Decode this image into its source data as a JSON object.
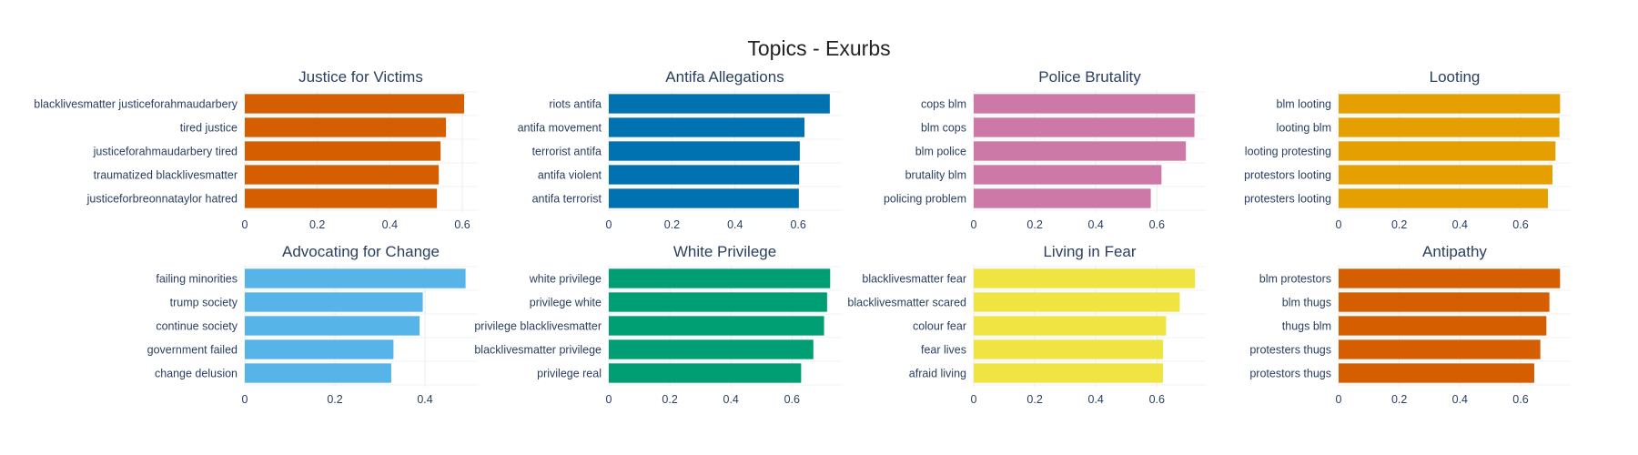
{
  "title": "Topics - Exurbs",
  "chart_data": [
    {
      "type": "bar",
      "orientation": "horizontal",
      "title": "Justice for Victims",
      "color": "#d55e00",
      "categories": [
        "blacklivesmatter justiceforahmaudarbery",
        "tired justice",
        "justiceforahmaudarbery tired",
        "traumatized blacklivesmatter",
        "justiceforbreonnataylor hatred"
      ],
      "values": [
        0.605,
        0.555,
        0.54,
        0.535,
        0.53
      ],
      "xlim": [
        0,
        0.64
      ],
      "ticks": [
        0,
        0.2,
        0.4,
        0.6
      ],
      "tick_labels": [
        "0",
        "0.2",
        "0.4",
        "0.6"
      ]
    },
    {
      "type": "bar",
      "orientation": "horizontal",
      "title": "Antifa Allegations",
      "color": "#0072b2",
      "categories": [
        "riots antifa",
        "antifa movement",
        "terrorist antifa",
        "antifa violent",
        "antifa terrorist"
      ],
      "values": [
        0.7,
        0.62,
        0.605,
        0.603,
        0.602
      ],
      "xlim": [
        0,
        0.735
      ],
      "ticks": [
        0,
        0.2,
        0.4,
        0.6
      ],
      "tick_labels": [
        "0",
        "0.2",
        "0.4",
        "0.6"
      ]
    },
    {
      "type": "bar",
      "orientation": "horizontal",
      "title": "Police Brutality",
      "color": "#cc79a7",
      "categories": [
        "cops blm",
        "blm cops",
        "blm police",
        "brutality blm",
        "policing problem"
      ],
      "values": [
        0.725,
        0.723,
        0.695,
        0.615,
        0.58
      ],
      "xlim": [
        0,
        0.76
      ],
      "ticks": [
        0,
        0.2,
        0.4,
        0.6
      ],
      "tick_labels": [
        "0",
        "0.2",
        "0.4",
        "0.6"
      ]
    },
    {
      "type": "bar",
      "orientation": "horizontal",
      "title": "Looting",
      "color": "#e69f00",
      "categories": [
        "blm looting",
        "looting blm",
        "looting protesting",
        "protestors looting",
        "protesters looting"
      ],
      "values": [
        0.73,
        0.728,
        0.715,
        0.705,
        0.69
      ],
      "xlim": [
        0,
        0.765
      ],
      "ticks": [
        0,
        0.2,
        0.4,
        0.6
      ],
      "tick_labels": [
        "0",
        "0.2",
        "0.4",
        "0.6"
      ]
    },
    {
      "type": "bar",
      "orientation": "horizontal",
      "title": "Advocating for Change",
      "color": "#56b4e9",
      "categories": [
        "failing minorities",
        "trump society",
        "continue society",
        "government failed",
        "change delusion"
      ],
      "values": [
        0.49,
        0.395,
        0.388,
        0.33,
        0.325
      ],
      "xlim": [
        0,
        0.515
      ],
      "ticks": [
        0,
        0.2,
        0.4
      ],
      "tick_labels": [
        "0",
        "0.2",
        "0.4"
      ]
    },
    {
      "type": "bar",
      "orientation": "horizontal",
      "title": "White Privilege",
      "color": "#009e73",
      "categories": [
        "white privilege",
        "privilege white",
        "privilege blacklivesmatter",
        "blacklivesmatter privilege",
        "privilege real"
      ],
      "values": [
        0.725,
        0.715,
        0.705,
        0.67,
        0.63
      ],
      "xlim": [
        0,
        0.76
      ],
      "ticks": [
        0,
        0.2,
        0.4,
        0.6
      ],
      "tick_labels": [
        "0",
        "0.2",
        "0.4",
        "0.6"
      ]
    },
    {
      "type": "bar",
      "orientation": "horizontal",
      "title": "Living in Fear",
      "color": "#f0e442",
      "categories": [
        "blacklivesmatter fear",
        "blacklivesmatter scared",
        "colour fear",
        "fear lives",
        "afraid living"
      ],
      "values": [
        0.725,
        0.675,
        0.63,
        0.62,
        0.62
      ],
      "xlim": [
        0,
        0.76
      ],
      "ticks": [
        0,
        0.2,
        0.4,
        0.6
      ],
      "tick_labels": [
        "0",
        "0.2",
        "0.4",
        "0.6"
      ]
    },
    {
      "type": "bar",
      "orientation": "horizontal",
      "title": "Antipathy",
      "color": "#d55e00",
      "categories": [
        "blm protestors",
        "blm thugs",
        "thugs blm",
        "protesters thugs",
        "protestors thugs"
      ],
      "values": [
        0.73,
        0.695,
        0.685,
        0.665,
        0.645
      ],
      "xlim": [
        0,
        0.765
      ],
      "ticks": [
        0,
        0.2,
        0.4,
        0.6
      ],
      "tick_labels": [
        "0",
        "0.2",
        "0.4",
        "0.6"
      ]
    }
  ]
}
